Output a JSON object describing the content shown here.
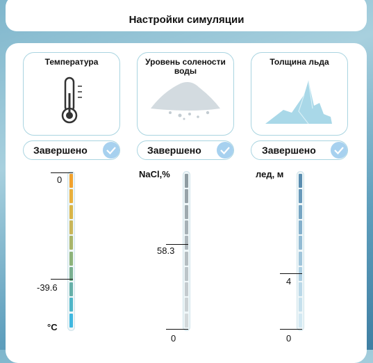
{
  "header": {
    "title": "Настройки симуляции"
  },
  "parameters": [
    {
      "label": "Температура",
      "status": "Завершено",
      "unit": "°C",
      "scale": [
        "0",
        "-39.6"
      ]
    },
    {
      "label": "Уровень солености воды",
      "status": "Завершено",
      "unit": "NaCl,%",
      "scale": [
        "58.3",
        "0"
      ]
    },
    {
      "label": "Толщина льда",
      "status": "Завершено",
      "unit": "лед, м",
      "scale": [
        "4",
        "0"
      ]
    }
  ]
}
